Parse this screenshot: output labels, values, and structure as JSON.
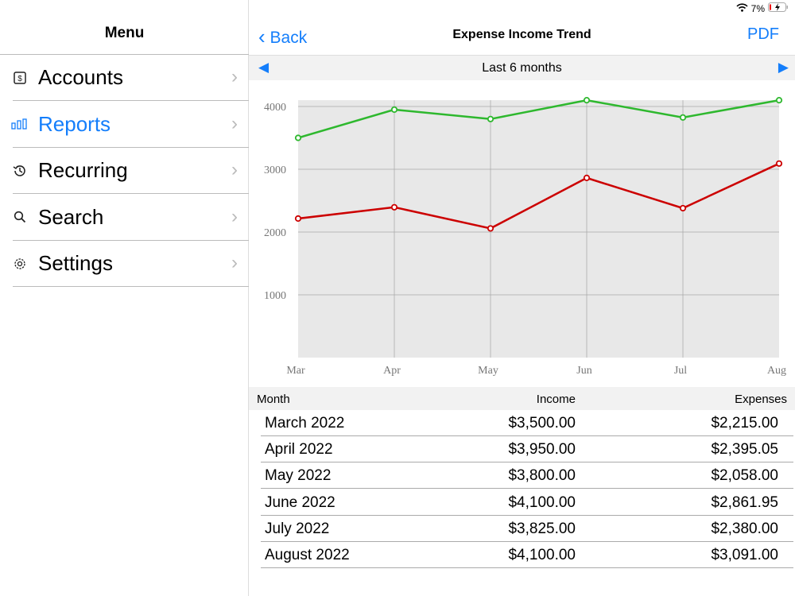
{
  "sidebar": {
    "title": "Menu",
    "items": [
      {
        "label": "Accounts",
        "icon": "dollar-icon",
        "active": false
      },
      {
        "label": "Reports",
        "icon": "bar-chart-icon",
        "active": true
      },
      {
        "label": "Recurring",
        "icon": "history-icon",
        "active": false
      },
      {
        "label": "Search",
        "icon": "search-icon",
        "active": false
      },
      {
        "label": "Settings",
        "icon": "gear-icon",
        "active": false
      }
    ]
  },
  "status": {
    "battery": "7%"
  },
  "nav": {
    "back": "Back",
    "title": "Expense Income Trend",
    "pdf": "PDF"
  },
  "period": {
    "label": "Last 6 months"
  },
  "colors": {
    "accent": "#147efb",
    "income": "#2eb82e",
    "expenses": "#cc0000"
  },
  "chart_data": {
    "type": "line",
    "categories": [
      "Mar",
      "Apr",
      "May",
      "Jun",
      "Jul",
      "Aug"
    ],
    "series": [
      {
        "name": "Income",
        "color": "#2eb82e",
        "values": [
          3500,
          3950,
          3800,
          4100,
          3825,
          4100
        ]
      },
      {
        "name": "Expenses",
        "color": "#cc0000",
        "values": [
          2215,
          2395.05,
          2058,
          2861.95,
          2380,
          3091
        ]
      }
    ],
    "yticks": [
      1000,
      2000,
      3000,
      4000
    ],
    "ylim": [
      0,
      4100
    ],
    "grid": true
  },
  "table": {
    "headers": [
      "Month",
      "Income",
      "Expenses"
    ],
    "rows": [
      [
        "March 2022",
        "$3,500.00",
        "$2,215.00"
      ],
      [
        "April 2022",
        "$3,950.00",
        "$2,395.05"
      ],
      [
        "May 2022",
        "$3,800.00",
        "$2,058.00"
      ],
      [
        "June 2022",
        "$4,100.00",
        "$2,861.95"
      ],
      [
        "July 2022",
        "$3,825.00",
        "$2,380.00"
      ],
      [
        "August 2022",
        "$4,100.00",
        "$3,091.00"
      ]
    ]
  }
}
